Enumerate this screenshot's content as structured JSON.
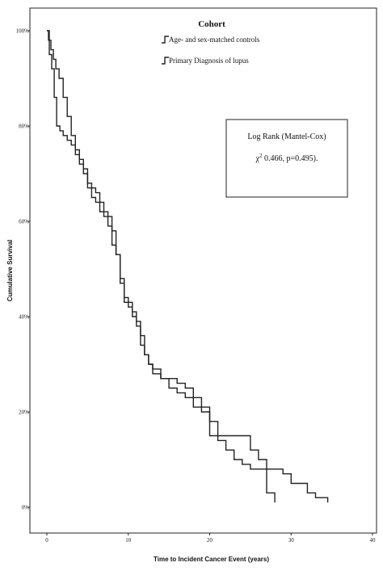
{
  "chart_data": {
    "type": "line",
    "step": true,
    "xlabel": "Time to Incident Cancer Event (years)",
    "ylabel": "Cumulative Survival",
    "xlim": [
      0,
      40
    ],
    "ylim": [
      0,
      100
    ],
    "x_ticks": [
      0,
      10,
      20,
      30,
      40
    ],
    "y_ticks": [
      0,
      20,
      40,
      60,
      80,
      100
    ],
    "y_tick_labels": [
      "0%",
      "20%",
      "40%",
      "60%",
      "80%",
      "100%"
    ],
    "legend": {
      "title": "Cohort",
      "placement": "top-center",
      "entries": [
        "Age- and sex-matched controls",
        "Primary Diagnosis of lupus"
      ]
    },
    "annotation": {
      "line1": "Log Rank (Mantel-Cox)",
      "line2_prefix": "χ",
      "line2_sup": "2",
      "line2_rest": " 0.466, p=0.495)."
    },
    "series": [
      {
        "name": "Age- and sex-matched controls",
        "x": [
          0,
          0.3,
          0.6,
          0.9,
          1.2,
          1.6,
          2.0,
          2.5,
          3.0,
          3.5,
          4.0,
          4.5,
          5.0,
          5.5,
          6.0,
          6.5,
          7.0,
          7.5,
          8.0,
          8.5,
          9.0,
          9.5,
          10.0,
          10.5,
          11.0,
          11.5,
          12.0,
          12.5,
          13.0,
          14.0,
          15.0,
          16.0,
          17.0,
          18.0,
          19.0,
          20.0,
          21.0,
          22.0,
          23.0,
          24.0,
          25.0,
          26.0,
          27.0,
          28.0
        ],
        "y": [
          100,
          95,
          92,
          86,
          80,
          79,
          78,
          77,
          76,
          74,
          72,
          70,
          67,
          65,
          64,
          62,
          61,
          59,
          55,
          53,
          48,
          43,
          42,
          40,
          38,
          36,
          32,
          30,
          28,
          27,
          27,
          26,
          25,
          23,
          21,
          18,
          14,
          12,
          10,
          9,
          8,
          8,
          3,
          1
        ]
      },
      {
        "name": "Primary Diagnosis of lupus",
        "x": [
          0,
          0.2,
          0.5,
          0.8,
          1.1,
          1.5,
          2.0,
          2.5,
          3.0,
          3.5,
          4.0,
          4.5,
          5.0,
          5.5,
          6.0,
          6.5,
          7.0,
          7.5,
          8.0,
          8.5,
          9.0,
          9.5,
          10.0,
          10.5,
          11.0,
          11.5,
          12.0,
          12.5,
          13.0,
          14.0,
          15.0,
          16.0,
          17.0,
          18.0,
          19.0,
          20.0,
          22.0,
          24.0,
          25.0,
          26.0,
          27.0,
          28.0,
          29.0,
          30.0,
          31.0,
          32.0,
          33.0,
          34.5
        ],
        "y": [
          100,
          98,
          96,
          94,
          92,
          90,
          86,
          82,
          78,
          75,
          73,
          71,
          68,
          67,
          66,
          64,
          62,
          61,
          58,
          53,
          47,
          44,
          43,
          41,
          39,
          34,
          32,
          30,
          29,
          27,
          25,
          24,
          23,
          21,
          20,
          15,
          15,
          15,
          12,
          10,
          8,
          8,
          7,
          5,
          5,
          3,
          2,
          1
        ]
      }
    ]
  }
}
